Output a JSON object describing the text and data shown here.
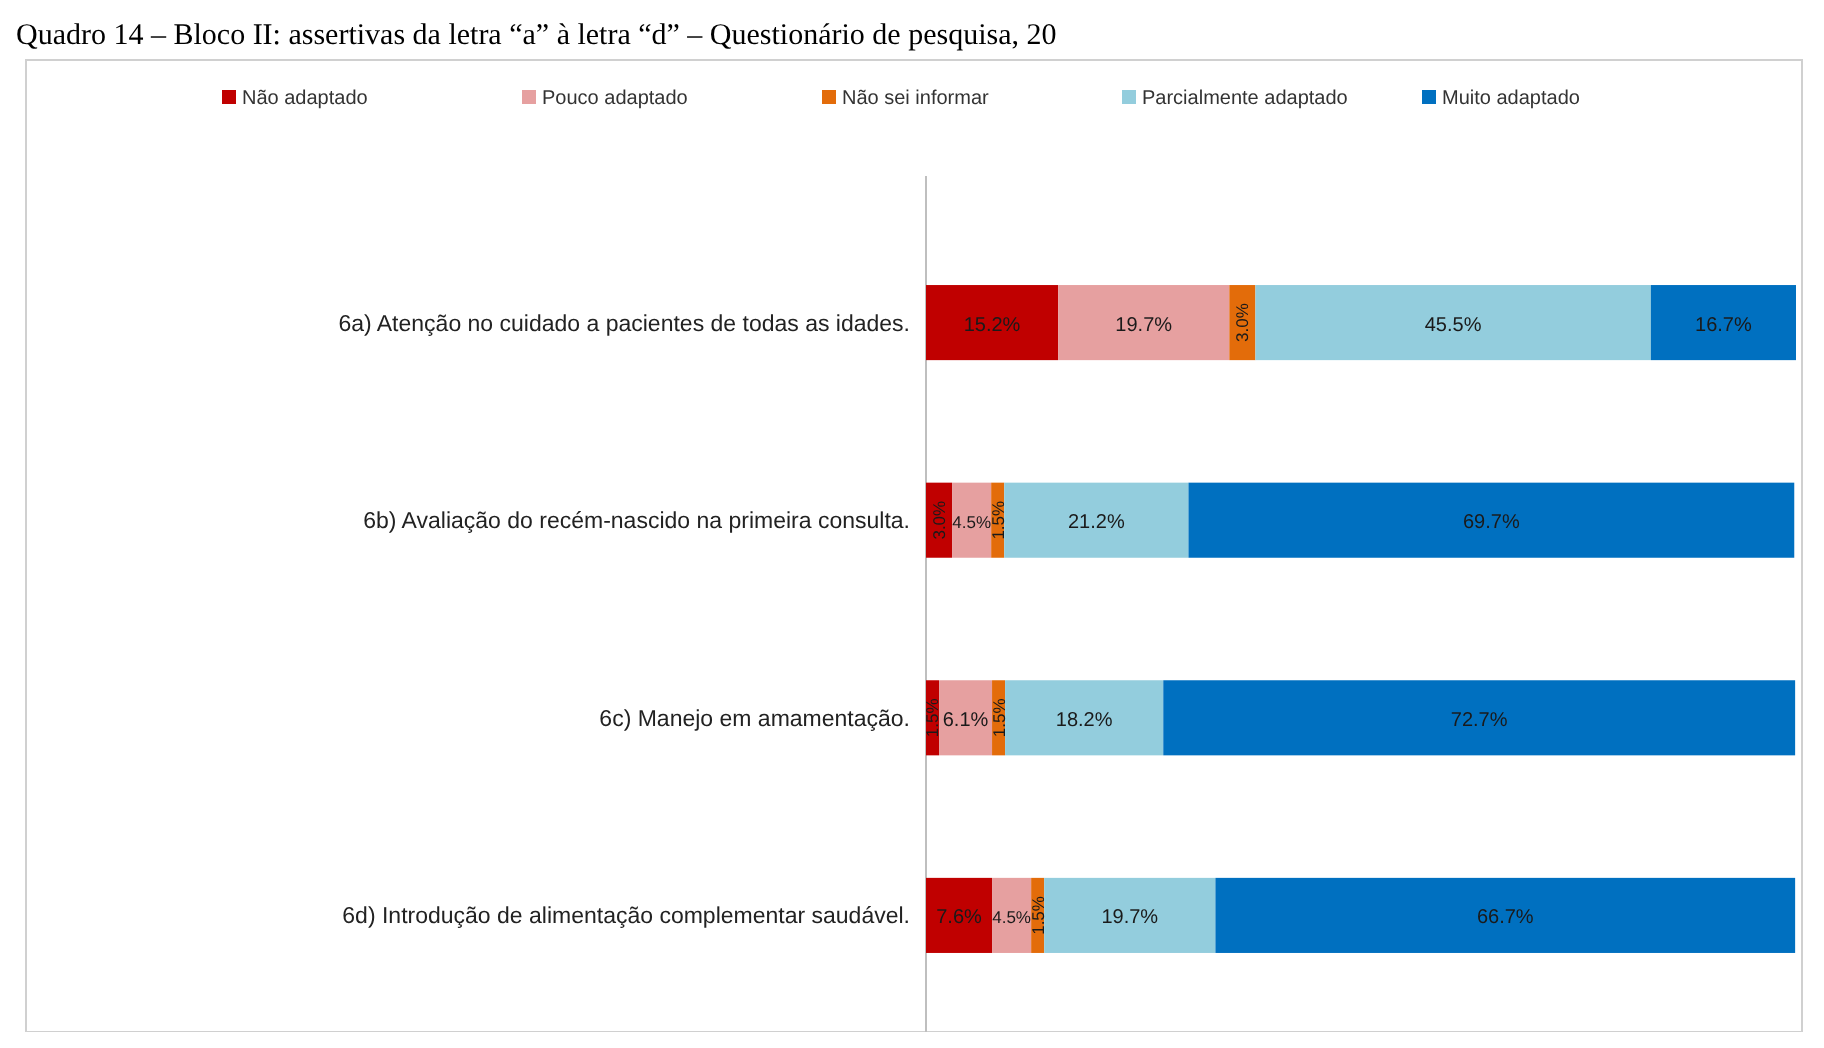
{
  "chart_data": {
    "type": "bar",
    "orientation": "horizontal",
    "stacked": true,
    "title": "Quadro 14 – Bloco II: assertivas da letra “a” à letra “d” – Questionário de pesquisa, 20",
    "legend": "top",
    "categories": [
      "6a) Atenção no cuidado a pacientes de todas as idades.",
      "6b) Avaliação do recém-nascido na primeira consulta.",
      "6c) Manejo em amamentação.",
      "6d) Introdução de alimentação complementar saudável."
    ],
    "series": [
      {
        "name": "Não adaptado",
        "color": "#c00000",
        "values": [
          15.2,
          3.0,
          1.5,
          7.6
        ],
        "value_labels": [
          "15.2%",
          "3.0%",
          "1.5%",
          "7.6%"
        ]
      },
      {
        "name": "Pouco adaptado",
        "color": "#e6a0a0",
        "values": [
          19.7,
          4.5,
          6.1,
          4.5
        ],
        "value_labels": [
          "19.7%",
          "4.5%",
          "6.1%",
          "4.5%"
        ]
      },
      {
        "name": "Não sei informar",
        "color": "#e36c0a",
        "values": [
          3.0,
          1.5,
          1.5,
          1.5
        ],
        "value_labels": [
          "3.0%",
          "1.5%",
          "1.5%",
          "1.5%"
        ]
      },
      {
        "name": "Parcialmente adaptado",
        "color": "#93cddd",
        "values": [
          45.5,
          21.2,
          18.2,
          19.7
        ],
        "value_labels": [
          "45.5%",
          "21.2%",
          "18.2%",
          "19.7%"
        ]
      },
      {
        "name": "Muito adaptado",
        "color": "#0070c0",
        "values": [
          16.7,
          69.7,
          72.7,
          66.7
        ],
        "value_labels": [
          "16.7%",
          "69.7%",
          "72.7%",
          "66.7%"
        ]
      }
    ]
  }
}
